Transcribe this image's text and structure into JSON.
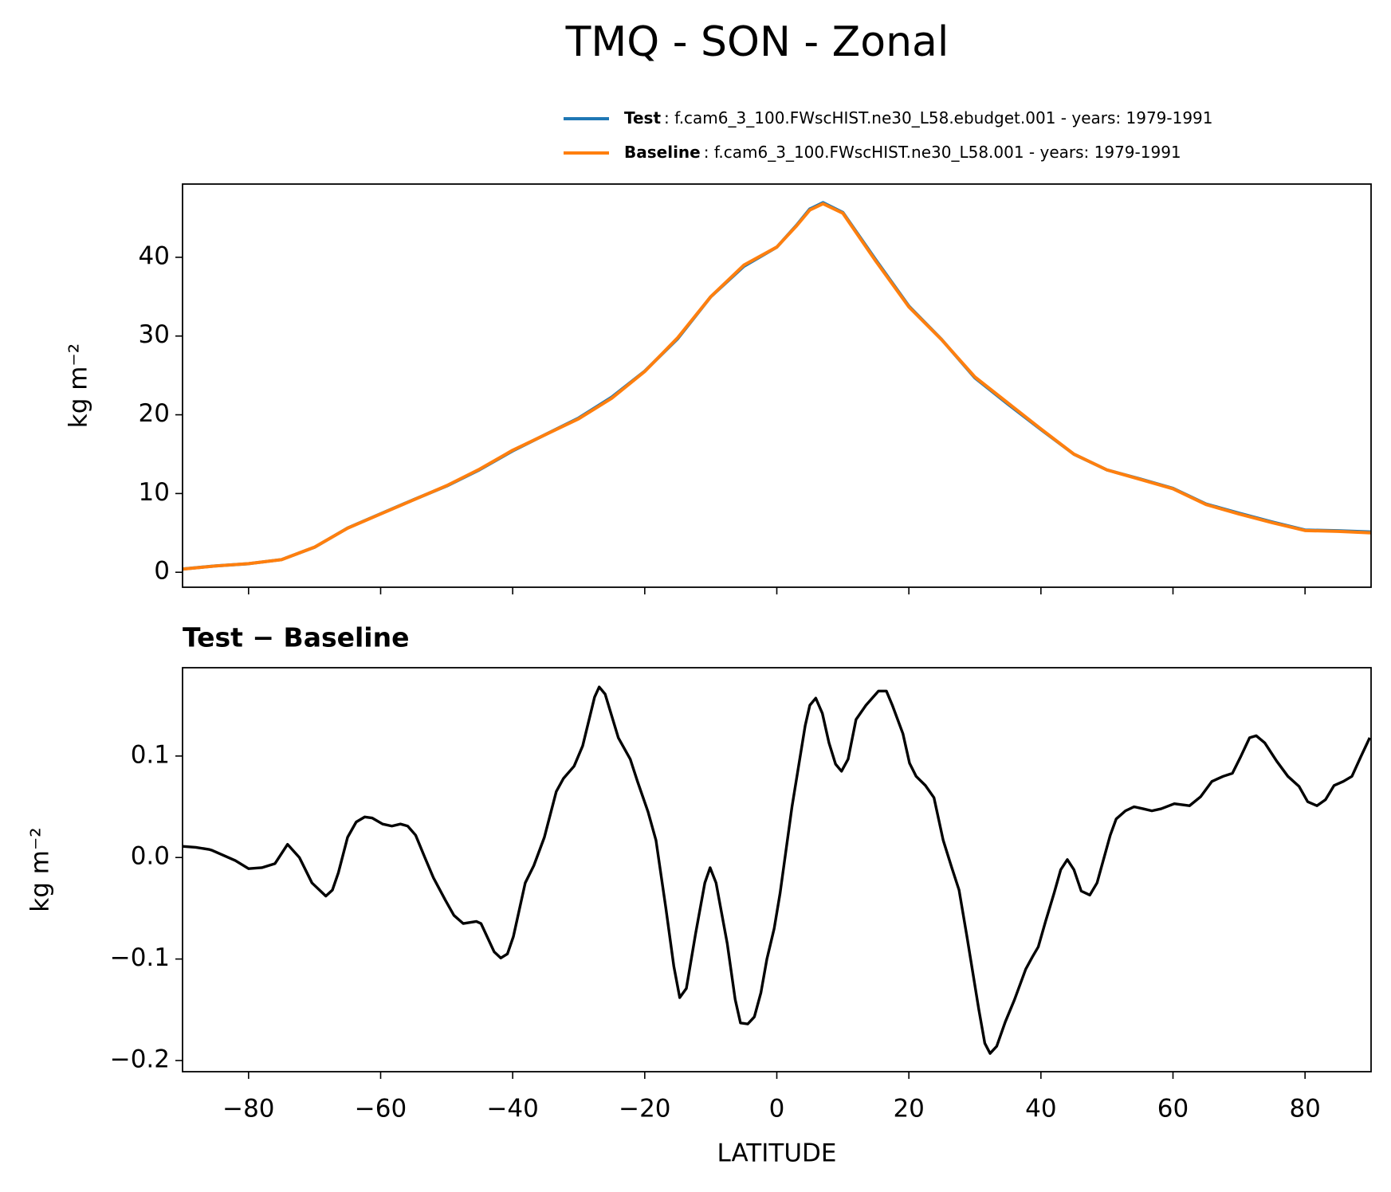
{
  "chart_data": [
    {
      "type": "line",
      "title": "TMQ - SON - Zonal",
      "ylabel": "kg m⁻²",
      "x": [
        -90,
        -85,
        -80,
        -75,
        -70,
        -65,
        -60,
        -55,
        -50,
        -45,
        -40,
        -35,
        -30,
        -25,
        -20,
        -15,
        -10,
        -5,
        0,
        3,
        5,
        7,
        10,
        15,
        20,
        25,
        30,
        35,
        40,
        45,
        50,
        55,
        60,
        65,
        70,
        75,
        80,
        85,
        90
      ],
      "series": [
        {
          "name": "Test",
          "detail": ": f.cam6_3_100.FWscHIST.ne30_L58.ebudget.001 - years: 1979-1991",
          "color": "#1f77b4",
          "values": [
            0.41,
            0.81,
            1.09,
            1.61,
            3.18,
            5.62,
            7.43,
            9.22,
            10.96,
            13.03,
            15.42,
            17.51,
            19.59,
            22.24,
            25.54,
            29.68,
            34.99,
            38.85,
            41.29,
            44.08,
            46.13,
            46.94,
            45.69,
            39.66,
            33.8,
            29.53,
            24.69,
            21.35,
            18.13,
            14.99,
            13.0,
            11.85,
            10.65,
            8.67,
            7.5,
            6.39,
            5.36,
            5.27,
            5.12
          ]
        },
        {
          "name": "Baseline",
          "detail": ": f.cam6_3_100.FWscHIST.ne30_L58.001 - years: 1979-1991",
          "color": "#ff7f0e",
          "values": [
            0.4,
            0.8,
            1.1,
            1.6,
            3.2,
            5.6,
            7.4,
            9.2,
            11.0,
            13.1,
            15.5,
            17.5,
            19.5,
            22.1,
            25.5,
            29.8,
            35.0,
            39.0,
            41.3,
            44.0,
            46.0,
            46.8,
            45.6,
            39.5,
            33.7,
            29.5,
            24.8,
            21.5,
            18.2,
            15.0,
            13.0,
            11.8,
            10.6,
            8.6,
            7.4,
            6.3,
            5.3,
            5.2,
            5.0
          ]
        }
      ],
      "xlim": [
        -90,
        90
      ],
      "xticks": [
        -80,
        -60,
        -40,
        -20,
        0,
        20,
        40,
        60,
        80
      ],
      "ylim": [
        -1.9,
        49.3
      ],
      "yticks": [
        0,
        10,
        20,
        30,
        40
      ]
    },
    {
      "type": "line",
      "title": "Test − Baseline",
      "ylabel": "kg m⁻²",
      "xlabel": "LATITUDE",
      "x": [
        -90,
        -88,
        -86,
        -85.5,
        -82,
        -80,
        -78,
        -76,
        -74.1,
        -72.3,
        -70.4,
        -68.3,
        -67.3,
        -66.4,
        -65,
        -63.7,
        -62.4,
        -61.3,
        -59.7,
        -58.3,
        -57,
        -55.9,
        -54.7,
        -53.3,
        -52,
        -50.2,
        -48.9,
        -47.5,
        -45.5,
        -44.8,
        -42.8,
        -41.8,
        -40.8,
        -39.9,
        -38.1,
        -36.8,
        -35.2,
        -33.4,
        -32.3,
        -30.7,
        -29.4,
        -27.6,
        -26.9,
        -26,
        -24,
        -22.2,
        -21.1,
        -19.5,
        -18.3,
        -16.8,
        -15.6,
        -14.7,
        -13.7,
        -12.3,
        -10.9,
        -10.1,
        -9.2,
        -7.5,
        -6.3,
        -5.5,
        -4.4,
        -3.4,
        -2.4,
        -1.5,
        -0.4,
        0.5,
        2.3,
        4.3,
        5,
        5.9,
        6.9,
        7.9,
        8.9,
        9.8,
        10.8,
        12,
        13.5,
        15.4,
        16.6,
        17.5,
        19.1,
        20.1,
        21.1,
        22.5,
        23.8,
        25.2,
        26.5,
        27.6,
        28.8,
        30.6,
        31.5,
        32.3,
        33.3,
        34.6,
        36,
        37.7,
        38.7,
        39.6,
        40.7,
        42,
        43,
        44,
        45,
        46.1,
        47.4,
        48.5,
        50.5,
        51.4,
        52.8,
        54.1,
        55.5,
        56.8,
        58.2,
        60.2,
        62.5,
        64.2,
        65.9,
        67.6,
        69,
        70.3,
        71.6,
        72.6,
        73.9,
        75.7,
        77.4,
        79.1,
        80.4,
        81.8,
        83.1,
        84.4,
        85.8,
        87.1,
        88.5,
        89.8
      ],
      "series": [
        {
          "name": "Test − Baseline",
          "color": "#000000",
          "values": [
            0.011,
            0.01,
            0.008,
            0.007,
            -0.003,
            -0.011,
            -0.01,
            -0.006,
            0.013,
            0.0,
            -0.025,
            -0.038,
            -0.032,
            -0.015,
            0.02,
            0.035,
            0.04,
            0.039,
            0.033,
            0.031,
            0.033,
            0.031,
            0.022,
            0.0,
            -0.02,
            -0.042,
            -0.057,
            -0.065,
            -0.063,
            -0.065,
            -0.093,
            -0.099,
            -0.095,
            -0.078,
            -0.025,
            -0.008,
            0.02,
            0.065,
            0.078,
            0.09,
            0.11,
            0.158,
            0.168,
            0.161,
            0.118,
            0.097,
            0.075,
            0.045,
            0.017,
            -0.05,
            -0.107,
            -0.138,
            -0.129,
            -0.075,
            -0.025,
            -0.01,
            -0.025,
            -0.085,
            -0.14,
            -0.163,
            -0.164,
            -0.157,
            -0.133,
            -0.1,
            -0.07,
            -0.035,
            0.05,
            0.13,
            0.15,
            0.157,
            0.142,
            0.113,
            0.092,
            0.085,
            0.097,
            0.136,
            0.15,
            0.164,
            0.164,
            0.15,
            0.122,
            0.093,
            0.08,
            0.071,
            0.059,
            0.017,
            -0.01,
            -0.032,
            -0.078,
            -0.15,
            -0.183,
            -0.193,
            -0.186,
            -0.162,
            -0.14,
            -0.11,
            -0.098,
            -0.088,
            -0.063,
            -0.035,
            -0.012,
            -0.002,
            -0.012,
            -0.033,
            -0.037,
            -0.025,
            0.022,
            0.038,
            0.046,
            0.05,
            0.048,
            0.046,
            0.048,
            0.053,
            0.051,
            0.06,
            0.075,
            0.08,
            0.083,
            0.1,
            0.118,
            0.12,
            0.113,
            0.095,
            0.08,
            0.07,
            0.055,
            0.051,
            0.057,
            0.071,
            0.075,
            0.08,
            0.1,
            0.118
          ]
        }
      ],
      "xlim": [
        -90,
        90
      ],
      "xticks": [
        {
          "value": -80,
          "label": "−80"
        },
        {
          "value": -60,
          "label": "−60"
        },
        {
          "value": -40,
          "label": "−40"
        },
        {
          "value": -20,
          "label": "−20"
        },
        0,
        20,
        40,
        60,
        80
      ],
      "ylim": [
        -0.211,
        0.187
      ],
      "yticks": [
        {
          "value": -0.2,
          "label": "−0.2"
        },
        {
          "value": -0.1,
          "label": "−0.1"
        },
        {
          "value": 0,
          "label": "0.0"
        },
        0.1
      ]
    }
  ]
}
